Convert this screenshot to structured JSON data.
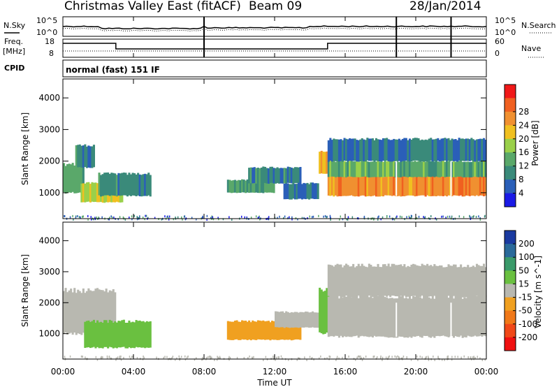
{
  "header": {
    "title": "Christmas Valley East (fitACF)",
    "beam": "Beam 09",
    "date": "28/Jan/2014"
  },
  "status_panel": {
    "nsky_label": "N.Sky",
    "nsearch_label": "N.Search",
    "noise_ticks": [
      "10^5",
      "10^0"
    ],
    "freq_label_line1": "Freq.",
    "freq_label_line2": "[MHz]",
    "freq_ticks": [
      "18",
      "8"
    ],
    "nave_label": "Nave",
    "nave_ticks": [
      "60",
      "0"
    ],
    "cpid_label": "CPID",
    "cpid_value": "normal (fast) 151 IF"
  },
  "chart_data": [
    {
      "type": "heatmap",
      "panel": "power",
      "xlabel": "",
      "ylabel": "Slant Range [km]",
      "x_range_hours": [
        0,
        24
      ],
      "y_range_km": [
        180,
        4600
      ],
      "y_ticks": [
        "1000",
        "2000",
        "3000",
        "4000"
      ],
      "colorbar": {
        "label": "Power [dB]",
        "ticks": [
          "4",
          "8",
          "12",
          "16",
          "20",
          "24",
          "28"
        ],
        "colors": [
          "#1a1ae6",
          "#2a5fb8",
          "#3a8a7a",
          "#5aa86a",
          "#9ad04a",
          "#f0c020",
          "#f09030",
          "#f06020",
          "#f01818"
        ]
      },
      "regions": [
        {
          "t0": 0.0,
          "t1": 1.2,
          "r0": 1000,
          "r1": 1900,
          "value_db": 16
        },
        {
          "t0": 0.7,
          "t1": 1.8,
          "r0": 1800,
          "r1": 2500,
          "value_db": 12
        },
        {
          "t0": 1.0,
          "t1": 3.4,
          "r0": 700,
          "r1": 1300,
          "value_db": 22
        },
        {
          "t0": 2.0,
          "t1": 5.0,
          "r0": 900,
          "r1": 1600,
          "value_db": 12
        },
        {
          "t0": 9.3,
          "t1": 12.0,
          "r0": 1000,
          "r1": 1400,
          "value_db": 14
        },
        {
          "t0": 10.5,
          "t1": 13.5,
          "r0": 1300,
          "r1": 1800,
          "value_db": 12
        },
        {
          "t0": 12.5,
          "t1": 14.5,
          "r0": 800,
          "r1": 1300,
          "value_db": 10
        },
        {
          "t0": 14.5,
          "t1": 15.2,
          "r0": 1600,
          "r1": 2300,
          "value_db": 24
        },
        {
          "t0": 15.0,
          "t1": 24.0,
          "r0": 900,
          "r1": 1600,
          "value_db": 28
        },
        {
          "t0": 15.0,
          "t1": 24.0,
          "r0": 1500,
          "r1": 2000,
          "value_db": 16
        },
        {
          "t0": 15.0,
          "t1": 24.0,
          "r0": 2000,
          "r1": 2700,
          "value_db": 10
        }
      ]
    },
    {
      "type": "heatmap",
      "panel": "velocity",
      "xlabel": "Time UT",
      "ylabel": "Slant Range [km]",
      "x_range_hours": [
        0,
        24
      ],
      "y_range_km": [
        180,
        4600
      ],
      "x_ticks": [
        "00:00",
        "04:00",
        "08:00",
        "12:00",
        "16:00",
        "20:00",
        "00:00"
      ],
      "y_ticks": [
        "1000",
        "2000",
        "3000",
        "4000"
      ],
      "colorbar": {
        "label": "Velocity [m s^-1]",
        "ticks": [
          "200",
          "100",
          "50",
          "15",
          "-15",
          "-50",
          "-100",
          "-200"
        ],
        "colors": [
          "#1a3aa0",
          "#2a6a9a",
          "#3a9a6a",
          "#6ac040",
          "#b8b8b0",
          "#f0a020",
          "#f07818",
          "#f04818",
          "#f01010"
        ]
      },
      "regions": [
        {
          "t0": 0.0,
          "t1": 3.0,
          "r0": 1000,
          "r1": 2400,
          "value_ms": 0
        },
        {
          "t0": 1.2,
          "t1": 5.0,
          "r0": 550,
          "r1": 1400,
          "value_ms": 40
        },
        {
          "t0": 9.3,
          "t1": 13.5,
          "r0": 800,
          "r1": 1400,
          "value_ms": -40
        },
        {
          "t0": 12.0,
          "t1": 14.5,
          "r0": 1200,
          "r1": 1700,
          "value_ms": 0
        },
        {
          "t0": 14.5,
          "t1": 15.3,
          "r0": 1000,
          "r1": 2400,
          "value_ms": 40
        },
        {
          "t0": 15.0,
          "t1": 24.0,
          "r0": 900,
          "r1": 2200,
          "value_ms": 0
        },
        {
          "t0": 15.0,
          "t1": 24.0,
          "r0": 2200,
          "r1": 3200,
          "value_ms": 0
        }
      ]
    }
  ]
}
